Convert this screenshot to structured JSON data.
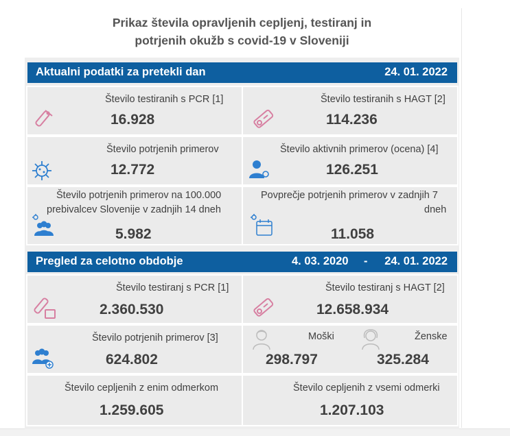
{
  "title_line1": "Prikaz števila opravljenih cepljenj, testiranj in",
  "title_line2": "potrjenih okužb s covid-19 v Sloveniji",
  "section1": {
    "heading": "Aktualni podatki za pretekli dan",
    "date": "24. 01. 2022",
    "pcr": {
      "label": "Število testiranih s PCR [1]",
      "value": "16.928",
      "icon": "test-tube-icon"
    },
    "hagt": {
      "label": "Število testiranih s HAGT [2]",
      "value": "114.236",
      "icon": "rapid-test-icon"
    },
    "confirmed": {
      "label": "Število potrjenih primerov",
      "value": "12.772",
      "icon": "virus-icon"
    },
    "active": {
      "label": "Število aktivnih primerov (ocena) [4]",
      "value": "126.251",
      "icon": "person-virus-icon"
    },
    "per100k": {
      "label_line1": "Število potrjenih primerov na 100.000",
      "label_line2": "prebivalcev Slovenije v zadnjih 14 dneh",
      "value": "5.982",
      "icon": "group-virus-icon"
    },
    "avg7": {
      "label_line1": "Povprečje potrjenih primerov v zadnjih 7",
      "label_line2": "dneh",
      "value": "11.058",
      "icon": "calendar-virus-icon"
    }
  },
  "section2": {
    "heading": "Pregled za celotno obdobje",
    "date_from": "4. 03. 2020",
    "dash": "-",
    "date_to": "24. 01. 2022",
    "pcr": {
      "label": "Število testiranj s PCR [1]",
      "value": "2.360.530",
      "icon": "test-tube-icon"
    },
    "hagt": {
      "label": "Število testiranj s HAGT [2]",
      "value": "12.658.934",
      "icon": "rapid-test-icon"
    },
    "confirmed": {
      "label": "Število potrjenih primerov [3]",
      "value": "624.802",
      "icon": "group-plus-icon"
    },
    "male": {
      "label": "Moški",
      "value": "298.797",
      "icon": "man-icon"
    },
    "female": {
      "label": "Ženske",
      "value": "325.284",
      "icon": "woman-icon"
    },
    "vacc_one": {
      "label": "Število cepljenih z enim odmerkom",
      "value": "1.259.605"
    },
    "vacc_all": {
      "label": "Število cepljenih z vsemi odmerki",
      "value": "1.207.103"
    }
  },
  "colors": {
    "header_bar": "#0e5fa0",
    "icon_blue": "#2e7fd0",
    "icon_pink": "#d77fa1",
    "card_bg": "#ebebeb"
  }
}
